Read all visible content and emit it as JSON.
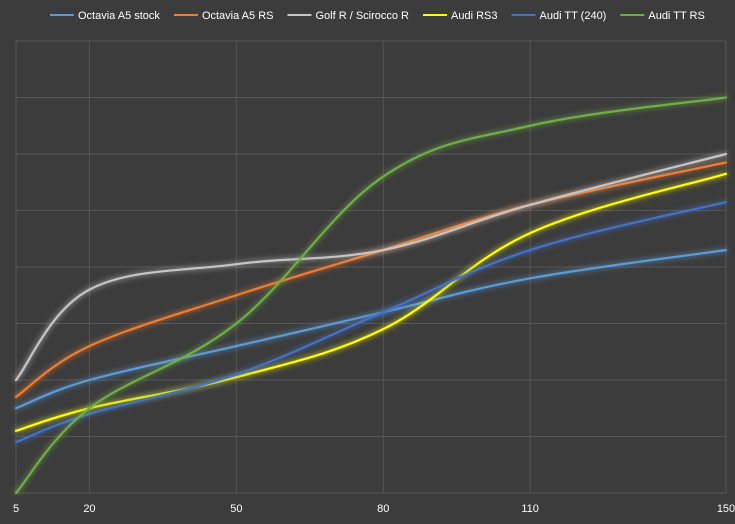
{
  "chart_data": {
    "type": "line",
    "title": "",
    "xlabel": "",
    "ylabel": "",
    "categories": [
      "5",
      "20",
      "50",
      "80",
      "110",
      "150"
    ],
    "ylim": [
      0,
      8
    ],
    "grid": true,
    "legend_position": "top",
    "background_color": "#3c3c3c",
    "gridline_color": "#565656",
    "text_color": "#ffffff",
    "series": [
      {
        "name": "Octavia A5 stock",
        "color": "#5b9bd5",
        "x": [
          5,
          20,
          50,
          80,
          110,
          150
        ],
        "values": [
          1.5,
          2.0,
          2.6,
          3.2,
          3.8,
          4.3
        ]
      },
      {
        "name": "Octavia A5 RS",
        "color": "#ed7d31",
        "x": [
          5,
          20,
          50,
          80,
          110,
          150
        ],
        "values": [
          1.7,
          2.6,
          3.5,
          4.3,
          5.1,
          5.85
        ]
      },
      {
        "name": "Golf R / Scirocco R",
        "color": "#c5c5c5",
        "x": [
          5,
          20,
          50,
          80,
          110,
          150
        ],
        "values": [
          2.0,
          3.6,
          4.05,
          4.3,
          5.1,
          6.0
        ]
      },
      {
        "name": "Audi RS3",
        "color": "#ffff00",
        "x": [
          5,
          20,
          50,
          80,
          110,
          150
        ],
        "values": [
          1.1,
          1.5,
          2.05,
          2.9,
          4.6,
          5.65
        ]
      },
      {
        "name": "Audi TT (240)",
        "color": "#4472c4",
        "x": [
          5,
          20,
          50,
          80,
          110,
          150
        ],
        "values": [
          0.9,
          1.4,
          2.1,
          3.2,
          4.3,
          5.15
        ]
      },
      {
        "name": "Audi TT RS",
        "color": "#70ad47",
        "x": [
          5,
          20,
          50,
          80,
          110,
          150
        ],
        "values": [
          0.0,
          1.5,
          3.0,
          5.6,
          6.5,
          7.0
        ]
      }
    ]
  }
}
